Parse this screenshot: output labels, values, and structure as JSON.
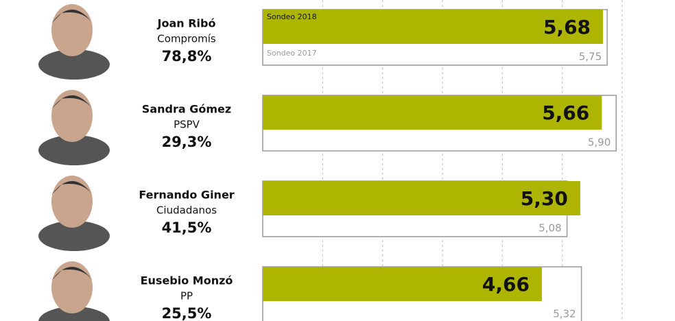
{
  "chart_data": {
    "type": "bar",
    "categories": [
      "Joan Ribó",
      "Sandra Gómez",
      "Fernando Giner",
      "Eusebio Monzó"
    ],
    "parties": [
      "Compromís",
      "PSPV",
      "Ciudadanos",
      "PP"
    ],
    "shares": [
      "78,8%",
      "29,3%",
      "41,5%",
      "25,5%"
    ],
    "series": [
      {
        "name": "Sondeo 2018",
        "color": "#adb500",
        "values": [
          5.68,
          5.66,
          5.3,
          4.66
        ],
        "value_labels": [
          "5,68",
          "5,66",
          "5,30",
          "4,66"
        ]
      },
      {
        "name": "Sondeo 2017",
        "color": "#999999",
        "values": [
          5.75,
          5.9,
          5.08,
          5.32
        ],
        "value_labels": [
          "5,75",
          "5,90",
          "5,08",
          "5,32"
        ]
      }
    ],
    "xlim": [
      0,
      6
    ],
    "xticks": [
      1,
      2,
      3,
      4,
      5,
      6
    ],
    "grid": true
  }
}
